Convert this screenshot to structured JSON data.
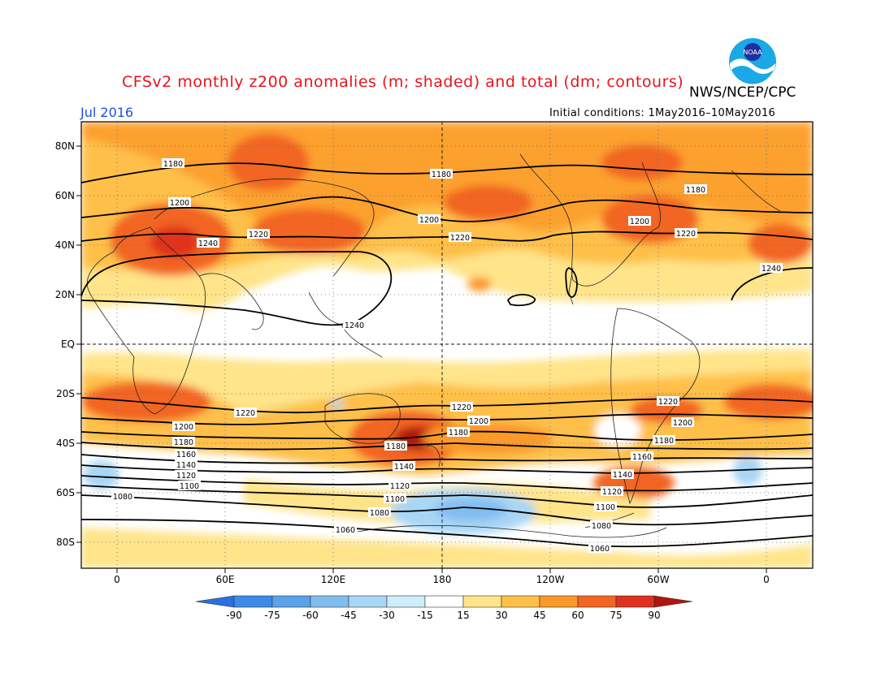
{
  "header": {
    "title": "CFSv2 monthly z200 anomalies (m; shaded) and total (dm; contours)",
    "agency": "NWS/NCEP/CPC",
    "month": "Jul 2016",
    "initial_conditions": "Initial conditions: 1May2016–10May2016"
  },
  "logo": {
    "icon": "noaa-logo-icon",
    "text": "NOAA"
  },
  "axes": {
    "lat_labels": [
      "80N",
      "60N",
      "40N",
      "20N",
      "EQ",
      "20S",
      "40S",
      "60S",
      "80S"
    ],
    "lon_labels": [
      "0",
      "60E",
      "120E",
      "180",
      "120W",
      "60W",
      "0"
    ]
  },
  "colorbar": {
    "labels": [
      "-90",
      "-75",
      "-60",
      "-45",
      "-30",
      "-15",
      "15",
      "30",
      "45",
      "60",
      "75",
      "90"
    ],
    "colors": [
      "#2b6fe0",
      "#3d8be6",
      "#5aa2ea",
      "#82bdf0",
      "#a9d6f5",
      "#cdeefa",
      "#ffffff",
      "#ffe48a",
      "#ffc04a",
      "#fb9a2a",
      "#f26522",
      "#e0301e",
      "#b0150f"
    ]
  },
  "contour_labels": {
    "nh_1180_a": "1180",
    "nh_1180_b": "1180",
    "nh_1180_c": "1180",
    "nh_1200_a": "1200",
    "nh_1200_b": "1200",
    "nh_1200_c": "1200",
    "nh_1220_a": "1220",
    "nh_1220_b": "1220",
    "nh_1220_c": "1220",
    "nh_1240_a": "1240",
    "nh_1240_b": "1240",
    "nh_1240_c": "1240",
    "sh_1220_a": "1220",
    "sh_1220_b": "1220",
    "sh_1220_c": "1220",
    "sh_1200_a": "1200",
    "sh_1200_b": "1200",
    "sh_1200_c": "1200",
    "sh_1180_a": "1180",
    "sh_1180_b": "1180",
    "sh_1180_c": "1180",
    "sh_1180_d": "1180",
    "sh_1160_a": "1160",
    "sh_1160_b": "1160",
    "sh_1140_a": "1140",
    "sh_1140_b": "1140",
    "sh_1140_c": "1140",
    "sh_1120_a": "1120",
    "sh_1120_b": "1120",
    "sh_1120_c": "1120",
    "sh_1100_a": "1100",
    "sh_1100_b": "1100",
    "sh_1100_c": "1100",
    "sh_1080_a": "1080",
    "sh_1080_b": "1080",
    "sh_1080_c": "1080",
    "sh_1060_a": "1060",
    "sh_1060_b": "1060"
  }
}
